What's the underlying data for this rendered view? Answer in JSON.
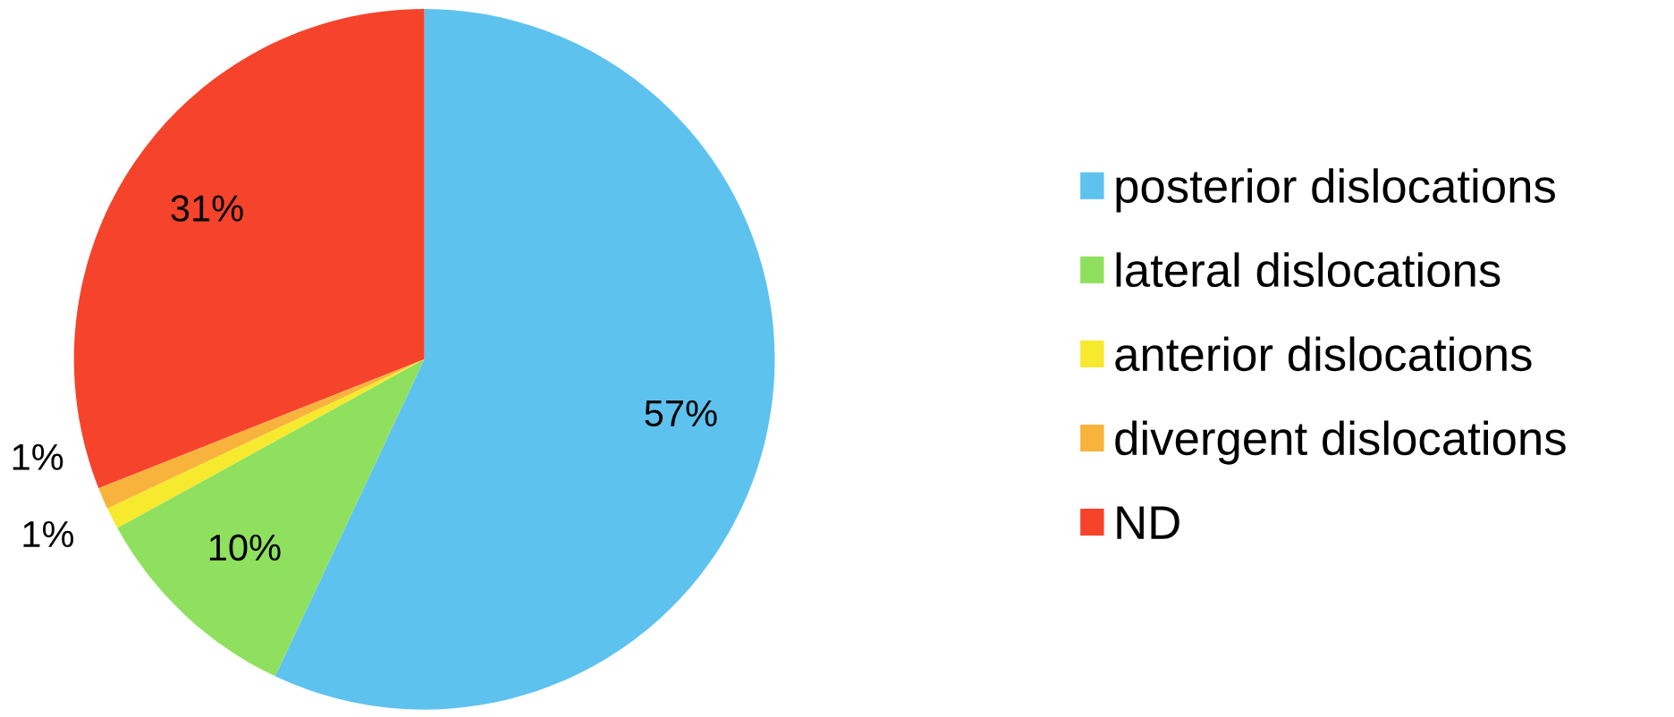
{
  "chart_data": {
    "type": "pie",
    "categories": [
      "posterior dislocations",
      "lateral dislocations",
      "anterior dislocations",
      "divergent dislocations",
      "ND"
    ],
    "values": [
      57,
      10,
      1,
      1,
      31
    ],
    "colors": [
      "#5ec2ef",
      "#8fe05e",
      "#f7e92e",
      "#f8b33c",
      "#f6432b"
    ],
    "value_labels": [
      "57%",
      "10%",
      "1%",
      "1%",
      "31%"
    ],
    "legend": "right"
  }
}
